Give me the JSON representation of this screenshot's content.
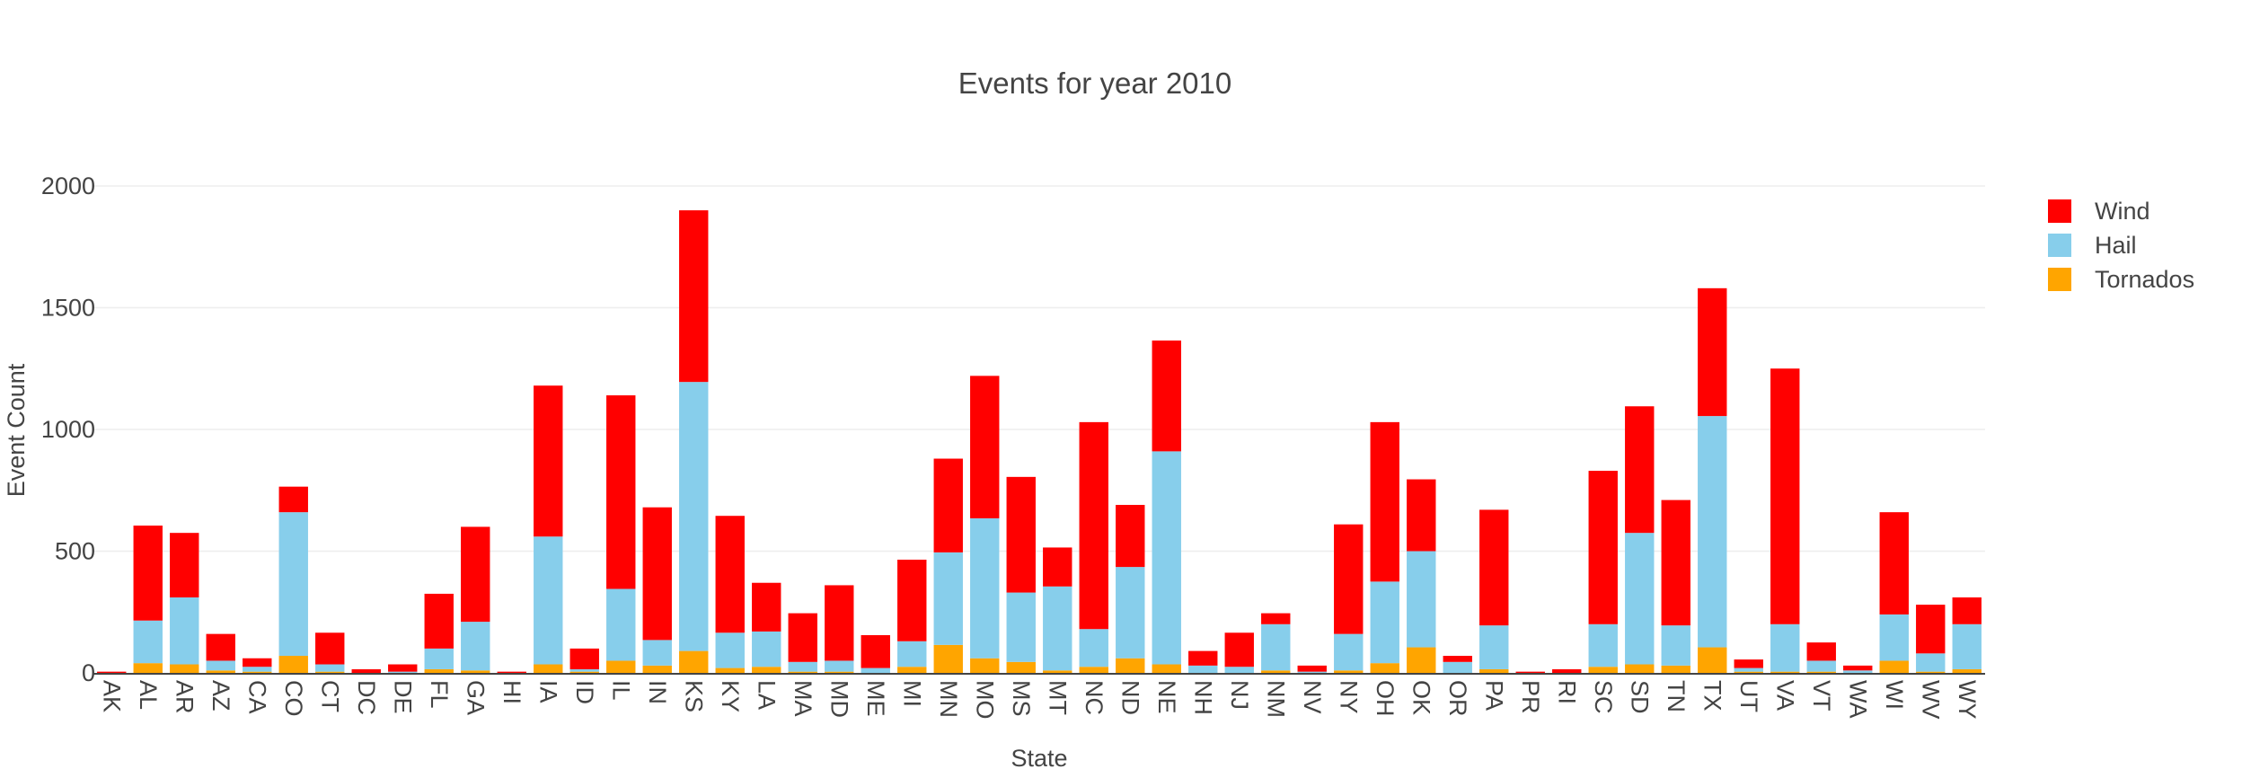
{
  "chart_data": {
    "type": "bar",
    "stacked": true,
    "title": "Events for year 2010",
    "xlabel": "State",
    "ylabel": "Event Count",
    "ylim": [
      0,
      2100
    ],
    "yticks": [
      0,
      500,
      1000,
      1500,
      2000
    ],
    "grid": true,
    "legend_position": "top-right",
    "categories": [
      "AK",
      "AL",
      "AR",
      "AZ",
      "CA",
      "CO",
      "CT",
      "DC",
      "DE",
      "FL",
      "GA",
      "HI",
      "IA",
      "ID",
      "IL",
      "IN",
      "KS",
      "KY",
      "LA",
      "MA",
      "MD",
      "ME",
      "MI",
      "MN",
      "MO",
      "MS",
      "MT",
      "NC",
      "ND",
      "NE",
      "NH",
      "NJ",
      "NM",
      "NV",
      "NY",
      "OH",
      "OK",
      "OR",
      "PA",
      "PR",
      "RI",
      "SC",
      "SD",
      "TN",
      "TX",
      "UT",
      "VA",
      "VT",
      "WA",
      "WI",
      "WV",
      "WY"
    ],
    "series": [
      {
        "name": "Tornados",
        "color": "#FFA500",
        "values": [
          0,
          40,
          35,
          10,
          5,
          70,
          5,
          0,
          0,
          15,
          10,
          0,
          35,
          5,
          50,
          30,
          90,
          20,
          25,
          5,
          5,
          0,
          25,
          115,
          60,
          45,
          10,
          25,
          60,
          35,
          0,
          0,
          10,
          0,
          10,
          40,
          105,
          0,
          15,
          0,
          0,
          25,
          35,
          30,
          105,
          5,
          5,
          5,
          0,
          50,
          5,
          15
        ]
      },
      {
        "name": "Hail",
        "color": "#87CEEB",
        "values": [
          0,
          175,
          275,
          40,
          20,
          590,
          30,
          0,
          5,
          85,
          200,
          0,
          525,
          10,
          295,
          105,
          1105,
          145,
          145,
          40,
          45,
          20,
          105,
          380,
          575,
          285,
          345,
          155,
          375,
          875,
          30,
          25,
          190,
          5,
          150,
          335,
          395,
          45,
          180,
          0,
          0,
          175,
          540,
          165,
          950,
          15,
          195,
          45,
          10,
          190,
          75,
          185
        ]
      },
      {
        "name": "Wind",
        "color": "#FF0000",
        "values": [
          5,
          390,
          265,
          110,
          35,
          105,
          130,
          15,
          30,
          225,
          390,
          5,
          620,
          85,
          795,
          545,
          705,
          480,
          200,
          200,
          310,
          135,
          335,
          385,
          585,
          475,
          160,
          850,
          255,
          455,
          60,
          140,
          45,
          25,
          450,
          655,
          295,
          25,
          475,
          5,
          15,
          630,
          520,
          515,
          525,
          35,
          1050,
          75,
          20,
          420,
          200,
          110
        ]
      }
    ],
    "legend": [
      "Wind",
      "Hail",
      "Tornados"
    ]
  }
}
